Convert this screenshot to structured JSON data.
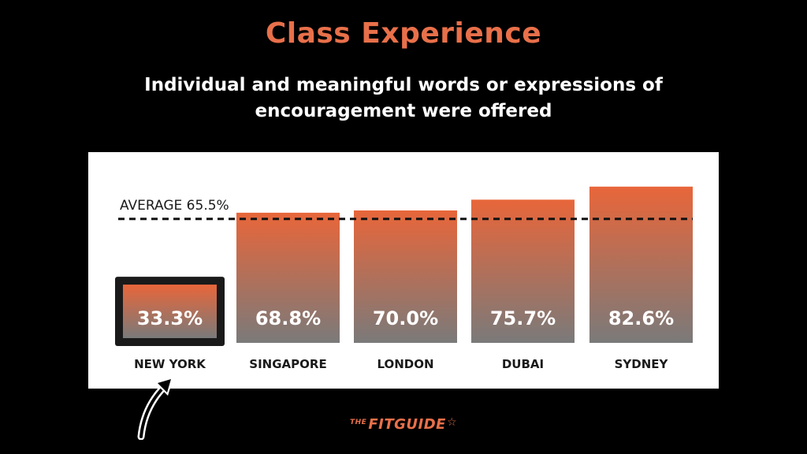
{
  "header": {
    "title": "Class Experience",
    "subtitle": "Individual and meaningful words or expressions of encouragement were offered"
  },
  "brand": {
    "prefix": "THE",
    "name": "FITGUIDE",
    "star": "☆"
  },
  "colors": {
    "accent": "#e8704a",
    "bar_top": "#e8663a",
    "bar_bottom": "#7a7a7a",
    "highlight_border": "#1a1a1a",
    "background": "#000000",
    "panel": "#ffffff"
  },
  "chart_data": {
    "type": "bar",
    "categories": [
      "NEW YORK",
      "SINGAPORE",
      "LONDON",
      "DUBAI",
      "SYDNEY"
    ],
    "values": [
      33.3,
      68.8,
      70.0,
      75.7,
      82.6
    ],
    "value_labels": [
      "33.3%",
      "68.8%",
      "70.0%",
      "75.7%",
      "82.6%"
    ],
    "highlighted_category": "NEW YORK",
    "average": {
      "value": 65.5,
      "label": "AVERAGE 65.5%"
    },
    "ylim": [
      0,
      100
    ],
    "grid": false,
    "legend": "none"
  }
}
